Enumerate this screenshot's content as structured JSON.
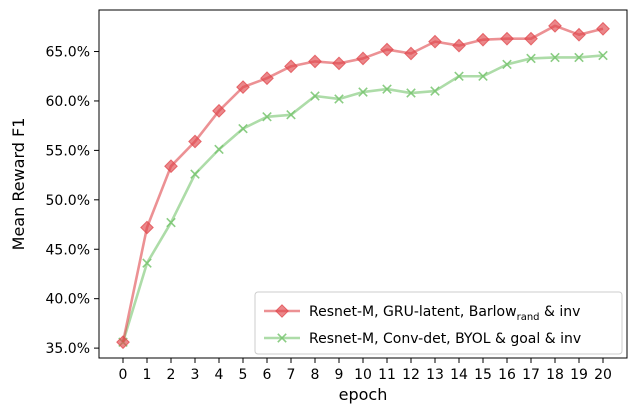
{
  "chart_data": {
    "type": "line",
    "xlabel": "epoch",
    "ylabel": "Mean Reward F1",
    "x": [
      0,
      1,
      2,
      3,
      4,
      5,
      6,
      7,
      8,
      9,
      10,
      11,
      12,
      13,
      14,
      15,
      16,
      17,
      18,
      19,
      20
    ],
    "xlim": [
      -1,
      21
    ],
    "ylim": [
      34.0,
      69.2
    ],
    "yticks": [
      35.0,
      40.0,
      45.0,
      50.0,
      55.0,
      60.0,
      65.0
    ],
    "ytick_format": "percent_1dp",
    "grid": false,
    "legend_position": "lower-right",
    "series": [
      {
        "name": "Resnet-M, GRU-latent, Barlow",
        "name_subscript": "rand",
        "name_suffix": " & inv",
        "color": "#e0474c",
        "marker": "diamond",
        "values": [
          35.6,
          47.2,
          53.4,
          55.9,
          59.0,
          61.4,
          62.3,
          63.5,
          64.0,
          63.8,
          64.3,
          65.2,
          64.8,
          66.0,
          65.6,
          66.2,
          66.3,
          66.3,
          67.6,
          66.7,
          67.3
        ]
      },
      {
        "name": "Resnet-M, Conv-det, BYOL & goal & inv",
        "color": "#77c46e",
        "marker": "x",
        "values": [
          35.6,
          43.6,
          47.7,
          52.6,
          55.1,
          57.2,
          58.4,
          58.6,
          60.5,
          60.2,
          60.9,
          61.2,
          60.8,
          61.0,
          62.5,
          62.5,
          63.7,
          64.3,
          64.4,
          64.4,
          64.6
        ]
      }
    ]
  }
}
